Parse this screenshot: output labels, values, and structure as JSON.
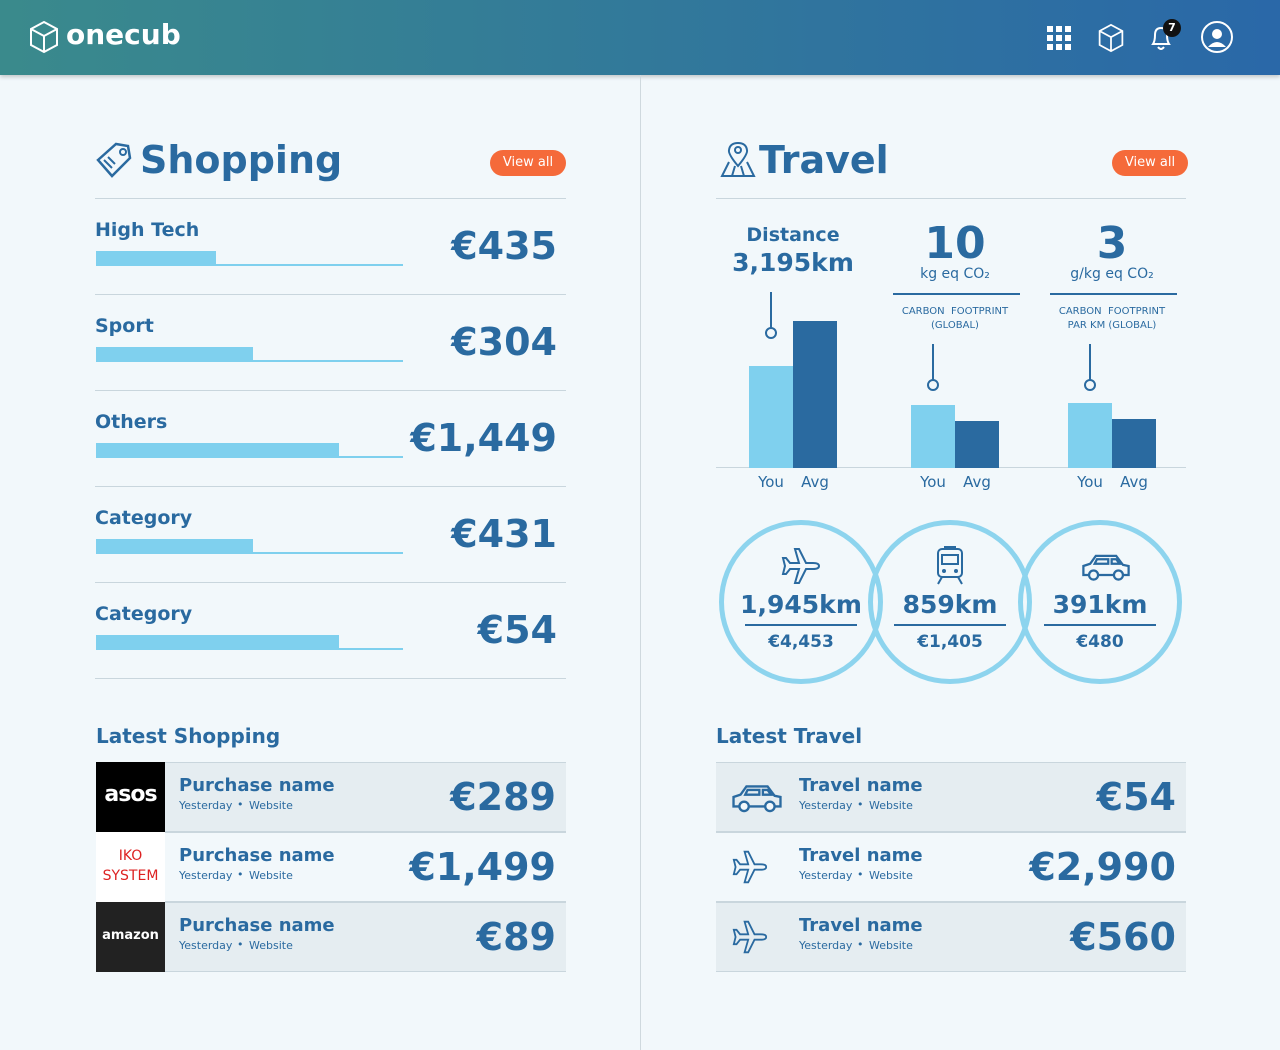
{
  "header": {
    "brand": "onecub",
    "notifications": 7
  },
  "shopping": {
    "title": "Shopping",
    "view_all": "View all",
    "categories": [
      {
        "name": "High Tech",
        "amount": "€435",
        "bar": 39
      },
      {
        "name": "Sport",
        "amount": "€304",
        "bar": 51
      },
      {
        "name": "Others",
        "amount": "€1,449",
        "bar": 79
      },
      {
        "name": "Category",
        "amount": "€431",
        "bar": 51
      },
      {
        "name": "Category",
        "amount": "€54",
        "bar": 79
      }
    ],
    "latest_title": "Latest Shopping",
    "latest": [
      {
        "logo": "asos",
        "name": "Purchase name",
        "date": "Yesterday",
        "source": "Website",
        "amount": "€289"
      },
      {
        "logo": "IKO SYSTEM",
        "name": "Purchase name",
        "date": "Yesterday",
        "source": "Website",
        "amount": "€1,499"
      },
      {
        "logo": "amazon",
        "name": "Purchase name",
        "date": "Yesterday",
        "source": "Website",
        "amount": "€89"
      }
    ]
  },
  "travel": {
    "title": "Travel",
    "view_all": "View all",
    "bar_labels": [
      "You",
      "Avg"
    ],
    "stats": [
      {
        "label": "Distance",
        "value": "3,195km",
        "you": 102,
        "avg": 147
      },
      {
        "value": "10",
        "unit": "kg eq CO₂",
        "caption": [
          "CARBON  FOOTPRINT",
          "(GLOBAL)"
        ],
        "you": 63,
        "avg": 47
      },
      {
        "value": "3",
        "unit": "g/kg eq CO₂",
        "caption": [
          "CARBON  FOOTPRINT",
          "PAR KM (GLOBAL)"
        ],
        "you": 65,
        "avg": 49
      }
    ],
    "modes": [
      {
        "distance": "1,945km",
        "cost": "€4,453"
      },
      {
        "distance": "859km",
        "cost": "€1,405"
      },
      {
        "distance": "391km",
        "cost": "€480"
      }
    ],
    "latest_title": "Latest Travel",
    "latest": [
      {
        "name": "Travel name",
        "date": "Yesterday",
        "source": "Website",
        "amount": "€54"
      },
      {
        "name": "Travel name",
        "date": "Yesterday",
        "source": "Website",
        "amount": "€2,990"
      },
      {
        "name": "Travel name",
        "date": "Yesterday",
        "source": "Website",
        "amount": "€560"
      }
    ]
  }
}
